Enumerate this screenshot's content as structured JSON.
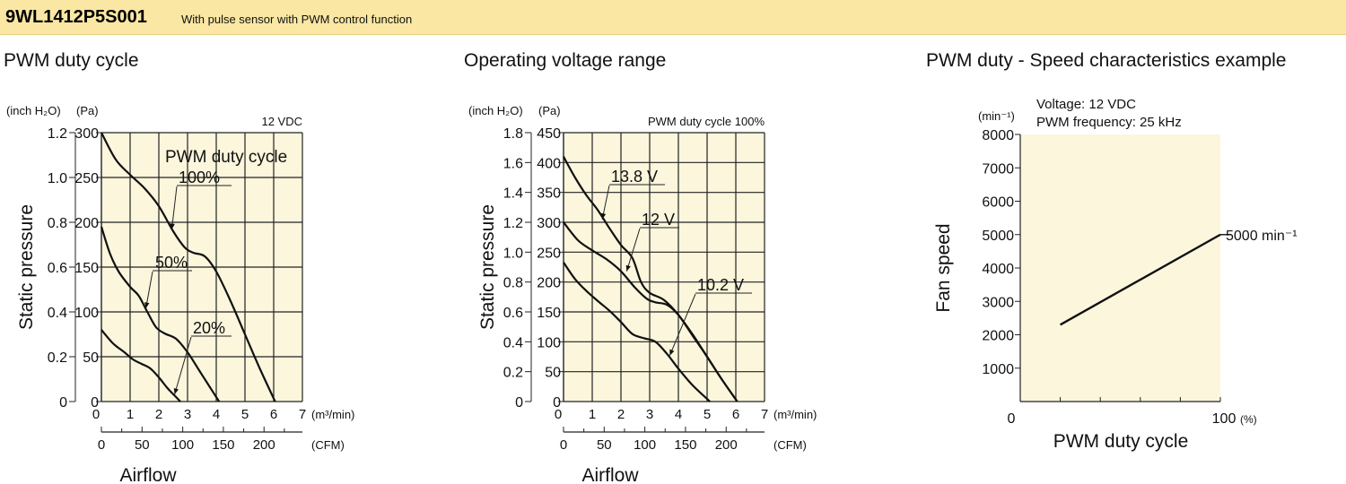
{
  "header": {
    "model": "9WL1412P5S001",
    "description": "With pulse sensor with PWM control function"
  },
  "colors": {
    "header_bg": "#f9e7a3",
    "plot_bg": "#fbf6dc",
    "line": "#111111"
  },
  "chart_data": [
    {
      "type": "line",
      "title": "PWM duty cycle",
      "xlabel": "Airflow",
      "ylabel": "Static pressure",
      "annotation": "12 VDC",
      "legend_title": "PWM duty cycle",
      "units": {
        "y_left": "(inch H₂O)",
        "y_right": "(Pa)",
        "x_top": "(m³/min)",
        "x_bottom": "(CFM)"
      },
      "xlim": [
        0,
        7
      ],
      "ylim": [
        0,
        300
      ],
      "x_ticks": [
        "0",
        "1",
        "2",
        "3",
        "4",
        "5",
        "6",
        "7"
      ],
      "y_ticks_pa": [
        "0",
        "50",
        "100",
        "150",
        "200",
        "250",
        "300"
      ],
      "y_ticks_inch": [
        "0",
        "0.2",
        "0.4",
        "0.6",
        "0.8",
        "1.0",
        "1.2"
      ],
      "cfm_ticks": [
        "0",
        "50",
        "100",
        "150",
        "200"
      ],
      "series": [
        {
          "name": "100%",
          "x": [
            0,
            0.5,
            1,
            1.5,
            2,
            2.5,
            2.9,
            3.2,
            3.6,
            4,
            4.5,
            5,
            5.5,
            6.05
          ],
          "y": [
            300,
            270,
            253,
            238,
            218,
            190,
            172,
            166,
            162,
            145,
            112,
            75,
            38,
            0
          ]
        },
        {
          "name": "50%",
          "x": [
            0,
            0.3,
            0.6,
            1,
            1.3,
            1.6,
            1.9,
            2.2,
            2.6,
            3,
            3.4,
            3.8,
            4.1
          ],
          "y": [
            195,
            165,
            145,
            128,
            118,
            100,
            83,
            76,
            70,
            55,
            35,
            15,
            0
          ]
        },
        {
          "name": "20%",
          "x": [
            0,
            0.4,
            0.8,
            1.1,
            1.4,
            1.7,
            2,
            2.3,
            2.6,
            2.75
          ],
          "y": [
            80,
            65,
            55,
            47,
            42,
            37,
            27,
            15,
            5,
            0
          ]
        }
      ]
    },
    {
      "type": "line",
      "title": "Operating voltage range",
      "xlabel": "Airflow",
      "ylabel": "Static pressure",
      "annotation": "PWM duty cycle 100%",
      "units": {
        "y_left": "(inch H₂O)",
        "y_right": "(Pa)",
        "x_top": "(m³/min)",
        "x_bottom": "(CFM)"
      },
      "xlim": [
        0,
        7
      ],
      "ylim": [
        0,
        450
      ],
      "x_ticks": [
        "0",
        "1",
        "2",
        "3",
        "4",
        "5",
        "6",
        "7"
      ],
      "y_ticks_pa": [
        "0",
        "50",
        "100",
        "150",
        "200",
        "250",
        "300",
        "350",
        "400",
        "450"
      ],
      "y_ticks_inch": [
        "0",
        "0.2",
        "0.4",
        "0.6",
        "0.8",
        "1.0",
        "1.2",
        "1.4",
        "1.6",
        "1.8"
      ],
      "cfm_ticks": [
        "0",
        "50",
        "100",
        "150",
        "200"
      ],
      "series": [
        {
          "name": "13.8 V",
          "x": [
            0,
            0.4,
            0.8,
            1.2,
            1.6,
            2,
            2.4,
            2.7,
            3,
            3.5,
            4,
            4.5,
            5,
            5.5,
            6.05
          ],
          "y": [
            410,
            375,
            345,
            320,
            290,
            262,
            240,
            200,
            182,
            170,
            145,
            110,
            75,
            38,
            0
          ]
        },
        {
          "name": "12 V",
          "x": [
            0,
            0.5,
            1,
            1.5,
            2,
            2.5,
            2.9,
            3.2,
            3.6,
            4,
            4.5,
            5,
            5.5,
            6.05
          ],
          "y": [
            300,
            270,
            253,
            238,
            218,
            190,
            172,
            166,
            162,
            145,
            112,
            75,
            38,
            0
          ]
        },
        {
          "name": "10.2 V",
          "x": [
            0,
            0.4,
            0.8,
            1.2,
            1.6,
            2,
            2.4,
            2.8,
            3.2,
            3.6,
            4,
            4.5,
            5.1
          ],
          "y": [
            233,
            205,
            185,
            168,
            152,
            133,
            113,
            106,
            100,
            80,
            55,
            27,
            0
          ]
        }
      ]
    },
    {
      "type": "line",
      "title": "PWM duty - Speed characteristics example",
      "xlabel": "PWM duty cycle",
      "ylabel": "Fan speed",
      "annotation_lines": [
        "Voltage: 12 VDC",
        "PWM frequency: 25 kHz"
      ],
      "units": {
        "y": "(min⁻¹)",
        "x": "(%)"
      },
      "xlim": [
        0,
        100
      ],
      "ylim": [
        0,
        8000
      ],
      "x_tick_labels": [
        "0",
        "100"
      ],
      "y_ticks": [
        "1000",
        "2000",
        "3000",
        "4000",
        "5000",
        "6000",
        "7000",
        "8000"
      ],
      "end_label": "5000 min⁻¹",
      "series": [
        {
          "name": "",
          "x": [
            20,
            100
          ],
          "y": [
            2300,
            5000
          ]
        }
      ]
    }
  ]
}
